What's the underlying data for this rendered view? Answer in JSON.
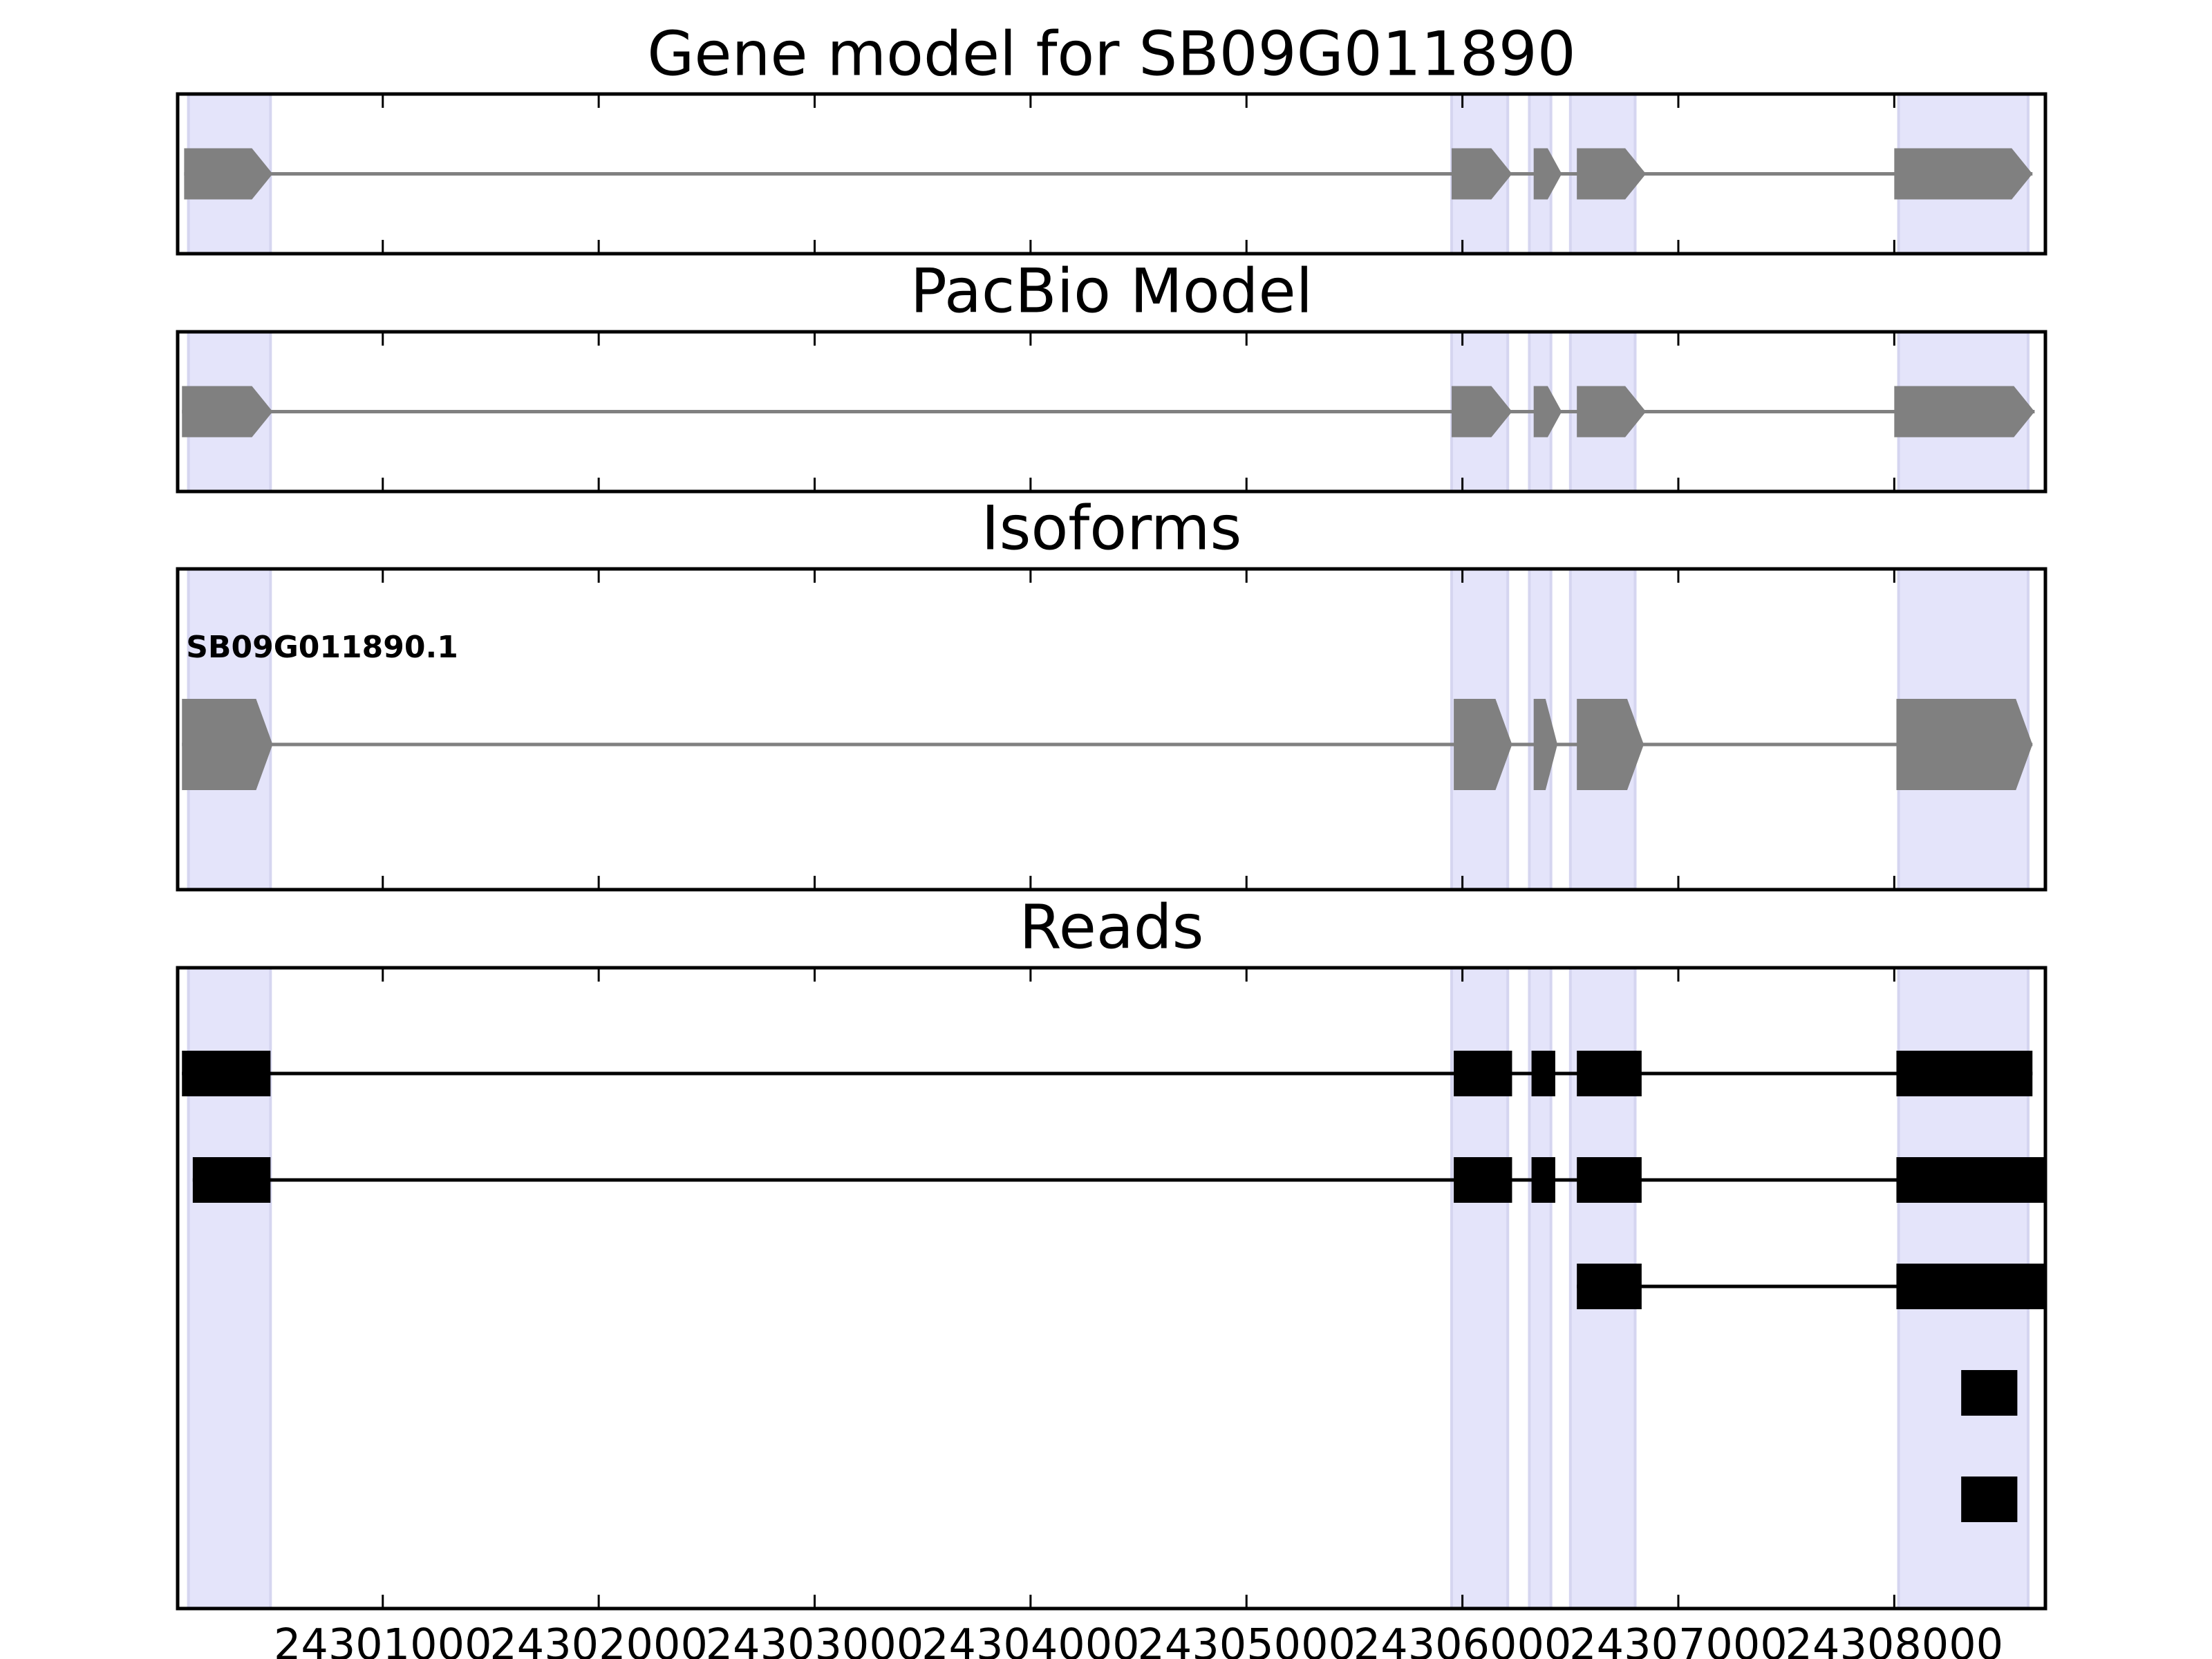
{
  "chart_data": {
    "type": "gene-structure",
    "xlim": [
      24300050,
      24308700
    ],
    "xticks": [
      24301000,
      24302000,
      24303000,
      24304000,
      24305000,
      24306000,
      24307000,
      24308000
    ],
    "xtick_labels": [
      "24301000",
      "24302000",
      "24303000",
      "24304000",
      "24305000",
      "24306000",
      "24307000",
      "24308000"
    ],
    "highlight_regions": [
      {
        "start": 24300100,
        "end": 24300480
      },
      {
        "start": 24305950,
        "end": 24306210
      },
      {
        "start": 24306310,
        "end": 24306410
      },
      {
        "start": 24306500,
        "end": 24306800
      },
      {
        "start": 24308020,
        "end": 24308620
      }
    ],
    "panels": [
      {
        "title": "Gene model for SB09G011890",
        "strand": "+",
        "models": [
          {
            "label": "",
            "exons": [
              {
                "start": 24300080,
                "end": 24300490
              },
              {
                "start": 24305950,
                "end": 24306230
              },
              {
                "start": 24306330,
                "end": 24306460
              },
              {
                "start": 24306530,
                "end": 24306850
              },
              {
                "start": 24308000,
                "end": 24308640
              }
            ]
          }
        ]
      },
      {
        "title": "PacBio Model",
        "strand": "+",
        "models": [
          {
            "label": "",
            "exons": [
              {
                "start": 24300070,
                "end": 24300490
              },
              {
                "start": 24305950,
                "end": 24306230
              },
              {
                "start": 24306330,
                "end": 24306460
              },
              {
                "start": 24306530,
                "end": 24306850
              },
              {
                "start": 24308000,
                "end": 24308650
              }
            ]
          }
        ]
      },
      {
        "title": "Isoforms",
        "strand": "+",
        "models": [
          {
            "label": "SB09G011890.1",
            "exons": [
              {
                "start": 24300070,
                "end": 24300490
              },
              {
                "start": 24305960,
                "end": 24306230
              },
              {
                "start": 24306330,
                "end": 24306440
              },
              {
                "start": 24306530,
                "end": 24306840
              },
              {
                "start": 24308010,
                "end": 24308640
              }
            ]
          }
        ]
      },
      {
        "title": "Reads",
        "reads": [
          {
            "exons": [
              {
                "start": 24300070,
                "end": 24300480
              },
              {
                "start": 24305960,
                "end": 24306230
              },
              {
                "start": 24306320,
                "end": 24306430
              },
              {
                "start": 24306530,
                "end": 24306830
              },
              {
                "start": 24308010,
                "end": 24308640
              }
            ]
          },
          {
            "exons": [
              {
                "start": 24300120,
                "end": 24300480
              },
              {
                "start": 24305960,
                "end": 24306230
              },
              {
                "start": 24306320,
                "end": 24306430
              },
              {
                "start": 24306530,
                "end": 24306830
              },
              {
                "start": 24308010,
                "end": 24308700
              }
            ]
          },
          {
            "exons": [
              {
                "start": 24306530,
                "end": 24306830
              },
              {
                "start": 24308010,
                "end": 24308700
              }
            ]
          },
          {
            "exons": [
              {
                "start": 24308310,
                "end": 24308570
              }
            ]
          },
          {
            "exons": [
              {
                "start": 24308310,
                "end": 24308570
              }
            ]
          }
        ]
      }
    ],
    "colors": {
      "highlight": "#e4e4fa",
      "highlight_edge": "#d5d5f0",
      "model": "#808080",
      "read": "#000000",
      "axis": "#000000"
    }
  }
}
